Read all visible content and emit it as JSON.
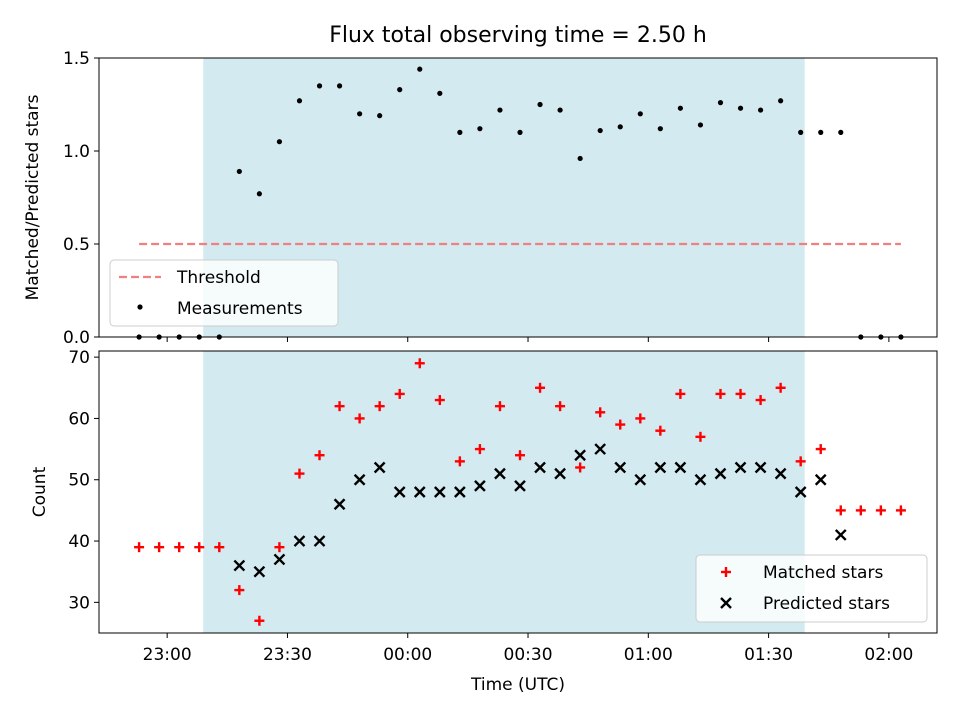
{
  "title": "Flux total observing time = 2.50 h",
  "xlabel": "Time (UTC)",
  "x_tick_labels": [
    "23:00",
    "23:30",
    "00:00",
    "00:30",
    "01:00",
    "01:30",
    "02:00"
  ],
  "x_tick_minutes": [
    0,
    30,
    60,
    90,
    120,
    150,
    180
  ],
  "xlim_minutes": [
    -17,
    192
  ],
  "x_reference": "23:00",
  "shaded_interval_minutes": [
    9,
    159
  ],
  "colors": {
    "shade": "#d3eaf0",
    "threshold": "#f08080",
    "measurement": "#000000",
    "matched": "#ff0000",
    "predicted": "#000000"
  },
  "chart_data": [
    {
      "type": "scatter",
      "panel": "top",
      "ylabel": "Matched/Predicted stars",
      "ylim": [
        0,
        1.5
      ],
      "yticks": [
        0.0,
        0.5,
        1.0,
        1.5
      ],
      "ytick_labels": [
        "0.0",
        "0.5",
        "1.0",
        "1.5"
      ],
      "legend_position": "lower-left",
      "threshold": {
        "name": "Threshold",
        "value": 0.5,
        "x_range": [
          -7,
          183
        ]
      },
      "series": [
        {
          "name": "Measurements",
          "x": [
            -7,
            -2,
            3,
            8,
            13,
            18,
            23,
            28,
            33,
            38,
            43,
            48,
            53,
            58,
            63,
            68,
            73,
            78,
            83,
            88,
            93,
            98,
            103,
            108,
            113,
            118,
            123,
            128,
            133,
            138,
            143,
            148,
            153,
            158,
            163,
            168,
            173,
            178,
            183
          ],
          "y": [
            0,
            0,
            0,
            0,
            0,
            0.89,
            0.77,
            1.05,
            1.27,
            1.35,
            1.35,
            1.2,
            1.19,
            1.33,
            1.44,
            1.31,
            1.1,
            1.12,
            1.22,
            1.1,
            1.25,
            1.22,
            0.96,
            1.11,
            1.13,
            1.2,
            1.12,
            1.23,
            1.14,
            1.26,
            1.23,
            1.22,
            1.27,
            1.1,
            1.1,
            1.1,
            0,
            0,
            0
          ]
        }
      ]
    },
    {
      "type": "scatter",
      "panel": "bottom",
      "ylabel": "Count",
      "ylim": [
        25,
        71
      ],
      "yticks": [
        30,
        40,
        50,
        60,
        70
      ],
      "ytick_labels": [
        "30",
        "40",
        "50",
        "60",
        "70"
      ],
      "legend_position": "lower-right",
      "series": [
        {
          "name": "Matched stars",
          "marker": "plus",
          "x": [
            -7,
            -2,
            3,
            8,
            13,
            18,
            23,
            28,
            33,
            38,
            43,
            48,
            53,
            58,
            63,
            68,
            73,
            78,
            83,
            88,
            93,
            98,
            103,
            108,
            113,
            118,
            123,
            128,
            133,
            138,
            143,
            148,
            153,
            158,
            163,
            168,
            173,
            178,
            183
          ],
          "y": [
            39,
            39,
            39,
            39,
            39,
            32,
            27,
            39,
            51,
            54,
            62,
            60,
            62,
            64,
            69,
            63,
            53,
            55,
            62,
            54,
            65,
            62,
            52,
            61,
            59,
            60,
            58,
            64,
            57,
            64,
            64,
            63,
            65,
            53,
            55,
            45,
            45,
            45,
            45
          ]
        },
        {
          "name": "Predicted stars",
          "marker": "x",
          "x": [
            18,
            23,
            28,
            33,
            38,
            43,
            48,
            53,
            58,
            63,
            68,
            73,
            78,
            83,
            88,
            93,
            98,
            103,
            108,
            113,
            118,
            123,
            128,
            133,
            138,
            143,
            148,
            153,
            158,
            163,
            168
          ],
          "y": [
            36,
            35,
            37,
            40,
            40,
            46,
            50,
            52,
            48,
            48,
            48,
            48,
            49,
            51,
            49,
            52,
            51,
            54,
            55,
            52,
            50,
            52,
            52,
            50,
            51,
            52,
            52,
            51,
            48,
            50,
            41
          ]
        }
      ]
    }
  ]
}
